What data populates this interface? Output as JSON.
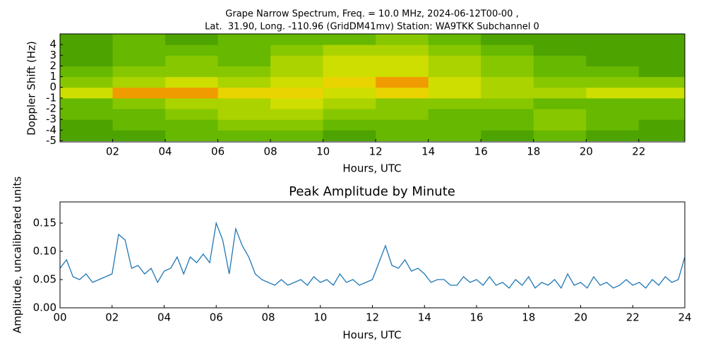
{
  "chart_data": [
    {
      "type": "heatmap",
      "title": [
        "Grape Narrow Spectrum, Freq. = 10.0 MHz, 2024-06-12T00-00 ,",
        "Lat.  31.90, Long. -110.96 (GridDM41mv) Station: WA9TKK Subchannel 0"
      ],
      "xlabel": "Hours, UTC",
      "ylabel": "Doppler Shift (Hz)",
      "xlim": [
        0,
        23.75
      ],
      "ylim": [
        -5.1,
        5
      ],
      "xticks": [
        {
          "value": 2,
          "label": "02"
        },
        {
          "value": 4,
          "label": "04"
        },
        {
          "value": 6,
          "label": "06"
        },
        {
          "value": 8,
          "label": "08"
        },
        10,
        12,
        14,
        16,
        18,
        20,
        22
      ],
      "yticks": [
        4,
        3,
        2,
        1,
        0,
        -1,
        -2,
        -3,
        -4,
        -5
      ],
      "xbins": [
        0,
        2,
        4,
        6,
        8,
        10,
        12,
        14,
        16,
        18,
        20,
        22,
        24
      ],
      "ybins": [
        -5,
        -4,
        -3,
        -2,
        -1,
        0,
        1,
        2,
        3,
        4,
        5
      ],
      "colormap": [
        "#1a7a00",
        "#6fbf00",
        "#e6e600",
        "#ff2a00"
      ],
      "z": [
        [
          0.2,
          0.2,
          0.3,
          0.3,
          0.3,
          0.2,
          0.3,
          0.3,
          0.2,
          0.3,
          0.2,
          0.2
        ],
        [
          0.2,
          0.3,
          0.3,
          0.4,
          0.4,
          0.3,
          0.3,
          0.3,
          0.3,
          0.4,
          0.3,
          0.2
        ],
        [
          0.3,
          0.3,
          0.4,
          0.5,
          0.5,
          0.4,
          0.4,
          0.3,
          0.3,
          0.4,
          0.3,
          0.3
        ],
        [
          0.3,
          0.4,
          0.5,
          0.5,
          0.6,
          0.5,
          0.4,
          0.4,
          0.4,
          0.3,
          0.3,
          0.3
        ],
        [
          0.6,
          0.8,
          0.8,
          0.7,
          0.7,
          0.6,
          0.7,
          0.6,
          0.5,
          0.5,
          0.6,
          0.6
        ],
        [
          0.4,
          0.5,
          0.6,
          0.5,
          0.6,
          0.7,
          0.8,
          0.6,
          0.5,
          0.4,
          0.4,
          0.4
        ],
        [
          0.3,
          0.4,
          0.4,
          0.4,
          0.5,
          0.6,
          0.6,
          0.5,
          0.4,
          0.3,
          0.3,
          0.2
        ],
        [
          0.2,
          0.3,
          0.4,
          0.3,
          0.5,
          0.6,
          0.6,
          0.5,
          0.4,
          0.3,
          0.2,
          0.2
        ],
        [
          0.2,
          0.3,
          0.3,
          0.3,
          0.4,
          0.5,
          0.5,
          0.4,
          0.3,
          0.2,
          0.2,
          0.2
        ],
        [
          0.2,
          0.3,
          0.2,
          0.3,
          0.3,
          0.3,
          0.4,
          0.3,
          0.2,
          0.2,
          0.2,
          0.2
        ]
      ]
    },
    {
      "type": "line",
      "title": "Peak Amplitude by Minute",
      "xlabel": "Hours, UTC",
      "ylabel": "Amplitude, uncalibrated units",
      "color": "#1f77b4",
      "xlim": [
        0,
        24
      ],
      "ylim": [
        0,
        0.1875
      ],
      "xticks": [
        {
          "value": 0,
          "label": "00"
        },
        {
          "value": 2,
          "label": "02"
        },
        {
          "value": 4,
          "label": "04"
        },
        {
          "value": 6,
          "label": "06"
        },
        {
          "value": 8,
          "label": "08"
        },
        10,
        12,
        14,
        16,
        18,
        20,
        22,
        24
      ],
      "yticks": [
        {
          "value": 0,
          "label": "0.00"
        },
        {
          "value": 0.05,
          "label": "0.05"
        },
        {
          "value": 0.1,
          "label": "0.10"
        },
        0.15
      ],
      "x": [
        0,
        0.25,
        0.5,
        0.75,
        1,
        1.25,
        1.5,
        1.75,
        2,
        2.25,
        2.5,
        2.75,
        3,
        3.25,
        3.5,
        3.75,
        4,
        4.25,
        4.5,
        4.75,
        5,
        5.25,
        5.5,
        5.75,
        6,
        6.25,
        6.5,
        6.75,
        7,
        7.25,
        7.5,
        7.75,
        8,
        8.25,
        8.5,
        8.75,
        9,
        9.25,
        9.5,
        9.75,
        10,
        10.25,
        10.5,
        10.75,
        11,
        11.25,
        11.5,
        11.75,
        12,
        12.25,
        12.5,
        12.75,
        13,
        13.25,
        13.5,
        13.75,
        14,
        14.25,
        14.5,
        14.75,
        15,
        15.25,
        15.5,
        15.75,
        16,
        16.25,
        16.5,
        16.75,
        17,
        17.25,
        17.5,
        17.75,
        18,
        18.25,
        18.5,
        18.75,
        19,
        19.25,
        19.5,
        19.75,
        20,
        20.25,
        20.5,
        20.75,
        21,
        21.25,
        21.5,
        21.75,
        22,
        22.25,
        22.5,
        22.75,
        23,
        23.25,
        23.5,
        23.75,
        24
      ],
      "values": [
        0.07,
        0.085,
        0.055,
        0.05,
        0.06,
        0.045,
        0.05,
        0.055,
        0.06,
        0.13,
        0.12,
        0.07,
        0.075,
        0.06,
        0.07,
        0.045,
        0.065,
        0.07,
        0.09,
        0.06,
        0.09,
        0.08,
        0.095,
        0.08,
        0.15,
        0.12,
        0.06,
        0.14,
        0.11,
        0.09,
        0.06,
        0.05,
        0.045,
        0.04,
        0.05,
        0.04,
        0.045,
        0.05,
        0.04,
        0.055,
        0.045,
        0.05,
        0.04,
        0.06,
        0.045,
        0.05,
        0.04,
        0.045,
        0.05,
        0.08,
        0.11,
        0.075,
        0.07,
        0.085,
        0.065,
        0.07,
        0.06,
        0.045,
        0.05,
        0.05,
        0.04,
        0.04,
        0.055,
        0.045,
        0.05,
        0.04,
        0.055,
        0.04,
        0.045,
        0.035,
        0.05,
        0.04,
        0.055,
        0.035,
        0.045,
        0.04,
        0.05,
        0.035,
        0.06,
        0.04,
        0.045,
        0.035,
        0.055,
        0.04,
        0.045,
        0.035,
        0.04,
        0.05,
        0.04,
        0.045,
        0.035,
        0.05,
        0.04,
        0.055,
        0.045,
        0.05,
        0.09
      ]
    }
  ]
}
